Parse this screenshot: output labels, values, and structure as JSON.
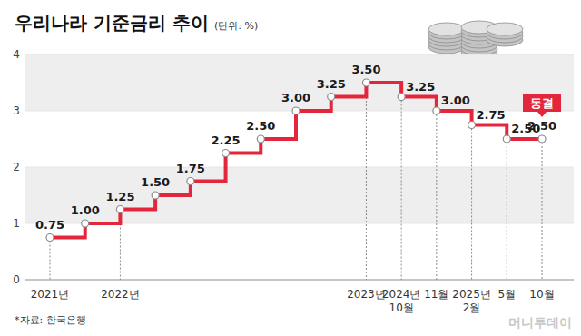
{
  "chart_data": {
    "type": "line",
    "title": "우리나라 기준금리 추이",
    "subtitle": "(단위: %)",
    "categories": [
      "2021년",
      null,
      "2022년",
      null,
      null,
      null,
      null,
      null,
      null,
      "2023년",
      "2024년 10월",
      "11월",
      "2025년 2월",
      "5월",
      "10월"
    ],
    "values": [
      0.75,
      1.0,
      1.25,
      1.5,
      1.75,
      2.25,
      2.5,
      3.0,
      3.25,
      3.5,
      3.25,
      3.0,
      2.75,
      2.5,
      2.5
    ],
    "value_labels": [
      "0.75",
      "1.00",
      "1.25",
      "1.50",
      "1.75",
      "2.25",
      "2.50",
      "3.00",
      "3.25",
      "3.50",
      "3.25",
      "3.00",
      "2.75",
      "2.50",
      "2.50"
    ],
    "color": "#e3263b",
    "line_style": "step",
    "marker": "circle",
    "data_labels": true,
    "ylim": [
      0,
      4
    ],
    "yticks": [
      0,
      1,
      2,
      3,
      4
    ],
    "grid": true,
    "annotation": "동결",
    "source": "*자료: 한국은행",
    "credit": "머니투데이"
  }
}
